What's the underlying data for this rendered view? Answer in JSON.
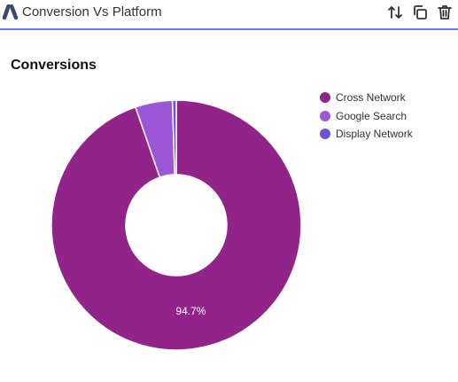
{
  "header": {
    "title": "Conversion Vs Platform",
    "logo_icon": "google-ads-logo-icon",
    "actions": [
      {
        "name": "sort-icon"
      },
      {
        "name": "duplicate-icon"
      },
      {
        "name": "delete-icon"
      }
    ],
    "accent_color": "#6b7fe0"
  },
  "chart_data": {
    "type": "pie",
    "title": "Conversions",
    "donut": true,
    "legend_position": "top-right",
    "categories": [
      "Cross Network",
      "Google Search",
      "Display Network"
    ],
    "values": [
      94.7,
      4.8,
      0.5
    ],
    "colors": [
      "#922389",
      "#9c57d9",
      "#6f52d6"
    ],
    "data_labels": [
      "94.7%",
      "",
      ""
    ]
  }
}
